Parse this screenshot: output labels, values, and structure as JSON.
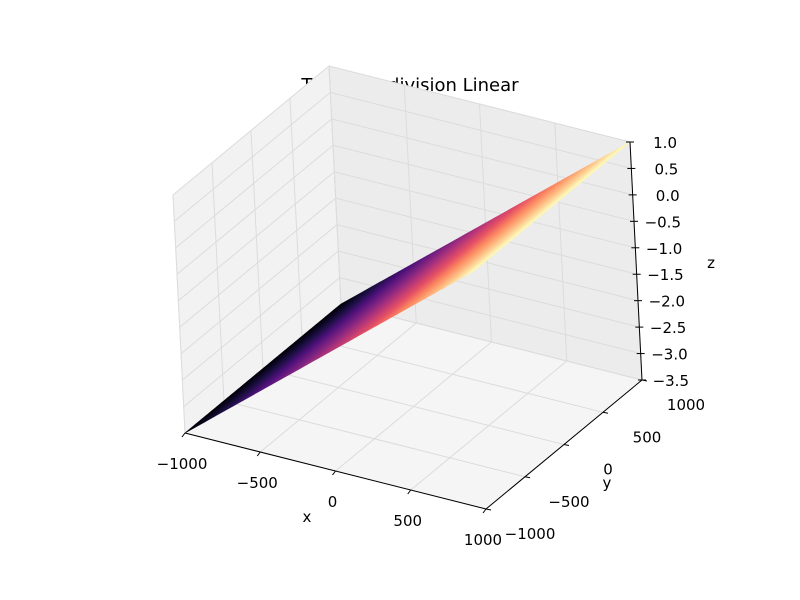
{
  "chart_data": {
    "type": "surface3d",
    "title": "Test set - division Linear",
    "xlabel": "x",
    "ylabel": "y",
    "zlabel": "z",
    "colormap": "magma",
    "xlim": [
      -1000,
      1000
    ],
    "ylim": [
      -1000,
      1000
    ],
    "zlim": [
      -3.5,
      1.0
    ],
    "x_ticks": [
      "−1000",
      "−500",
      "0",
      "500",
      "1000"
    ],
    "y_ticks": [
      "−1000",
      "−500",
      "0",
      "500",
      "1000"
    ],
    "z_ticks": [
      "−3.5",
      "−3.0",
      "−2.5",
      "−2.0",
      "−1.5",
      "−1.0",
      "−0.5",
      "0.0",
      "0.5",
      "1.0"
    ],
    "x_tick_values": [
      -1000,
      -500,
      0,
      500,
      1000
    ],
    "y_tick_values": [
      -1000,
      -500,
      0,
      500,
      1000
    ],
    "z_tick_values": [
      -3.5,
      -3.0,
      -2.5,
      -2.0,
      -1.5,
      -1.0,
      -0.5,
      0.0,
      0.5,
      1.0
    ],
    "surface": {
      "description_points": [
        {
          "x": -1000,
          "y": -1000,
          "z": -3.5
        },
        {
          "x": -1000,
          "y": 1000,
          "z": -3.5
        },
        {
          "x": 1000,
          "y": -1000,
          "z": 1.0
        },
        {
          "x": 1000,
          "y": 1000,
          "z": 1.0
        }
      ]
    },
    "grid": true
  }
}
